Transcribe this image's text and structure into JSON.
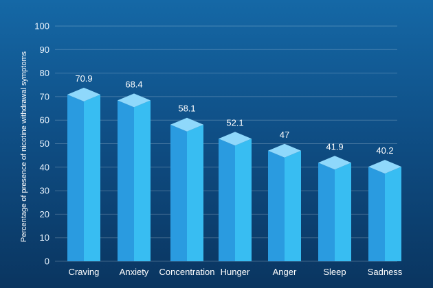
{
  "chart_data": {
    "type": "bar",
    "title": "",
    "xlabel": "",
    "ylabel": "Percentage of presence of nicotine withdrawal symptoms",
    "categories": [
      "Craving",
      "Anxiety",
      "Concentration",
      "Hunger",
      "Anger",
      "Sleep",
      "Sadness"
    ],
    "values": [
      70.9,
      68.4,
      58.1,
      52.1,
      47,
      41.9,
      40.2
    ],
    "value_labels": [
      "70.9",
      "68.4",
      "58.1",
      "52.1",
      "47",
      "41.9",
      "40.2"
    ],
    "ylim": [
      0,
      100
    ],
    "yticks": [
      "0",
      "10",
      "20",
      "30",
      "40",
      "50",
      "60",
      "70",
      "80",
      "90",
      "100"
    ],
    "grid": true,
    "style": "3d-bar",
    "colors": {
      "front": "#2a9be0",
      "side": "#38bdf2",
      "top": "#8fd8fb",
      "text": "#ffffff"
    }
  }
}
